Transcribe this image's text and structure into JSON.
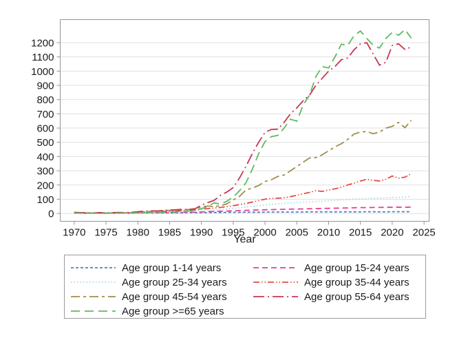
{
  "figure": {
    "background": "#ffffff"
  },
  "chart_data": {
    "type": "line",
    "title": "",
    "xlabel": "Year",
    "ylabel": "",
    "xlim": [
      1967.8,
      2025.8
    ],
    "ylim": [
      -55,
      1362
    ],
    "xticks": [
      1970,
      1975,
      1980,
      1985,
      1990,
      1995,
      2000,
      2005,
      2010,
      2015,
      2020,
      2025
    ],
    "yticks": [
      0,
      100,
      200,
      300,
      400,
      500,
      600,
      700,
      800,
      900,
      1000,
      1100,
      1200
    ],
    "grid": "horizontal",
    "legend_position": "bottom",
    "legend_columns": 2,
    "styles": {
      "grid_color": "#e0e0e0",
      "axis_color": "#949494",
      "legend_border_color": "#9a9a9a",
      "text_color": "#1a1a1a",
      "line_width": 1.8
    },
    "x": [
      1970,
      1971,
      1972,
      1973,
      1974,
      1975,
      1976,
      1977,
      1978,
      1979,
      1980,
      1981,
      1982,
      1983,
      1984,
      1985,
      1986,
      1987,
      1988,
      1989,
      1990,
      1991,
      1992,
      1993,
      1994,
      1995,
      1996,
      1997,
      1998,
      1999,
      2000,
      2001,
      2002,
      2003,
      2004,
      2005,
      2006,
      2007,
      2008,
      2009,
      2010,
      2011,
      2012,
      2013,
      2014,
      2015,
      2016,
      2017,
      2018,
      2019,
      2020,
      2021,
      2022,
      2023
    ],
    "series": [
      {
        "name": "Age group 1-14 years",
        "color": "#4d7ec0",
        "dash": "4 3",
        "values": [
          2,
          2,
          1,
          2,
          2,
          1,
          2,
          2,
          2,
          2,
          3,
          3,
          3,
          3,
          4,
          4,
          4,
          5,
          5,
          5,
          6,
          6,
          7,
          7,
          8,
          8,
          8,
          9,
          9,
          9,
          9,
          10,
          10,
          10,
          10,
          10,
          10,
          11,
          11,
          11,
          11,
          11,
          11,
          11,
          11,
          11,
          12,
          12,
          11,
          11,
          12,
          12,
          12,
          12
        ]
      },
      {
        "name": "Age group 15-24 years",
        "color": "#ea3a97",
        "dash": "8 5",
        "values": [
          4,
          3,
          3,
          2,
          3,
          2,
          3,
          3,
          3,
          4,
          5,
          5,
          6,
          6,
          7,
          7,
          8,
          8,
          9,
          10,
          11,
          13,
          14,
          15,
          17,
          18,
          20,
          22,
          24,
          25,
          26,
          27,
          28,
          29,
          30,
          31,
          32,
          33,
          34,
          35,
          36,
          37,
          38,
          39,
          40,
          41,
          41,
          42,
          42,
          43,
          43,
          44,
          43,
          45
        ]
      },
      {
        "name": "Age group 25-34 years",
        "color": "#a5d8e6",
        "dash": "1.5 3",
        "values": [
          3,
          2,
          2,
          2,
          2,
          2,
          3,
          3,
          3,
          3,
          4,
          5,
          6,
          7,
          8,
          9,
          10,
          11,
          13,
          14,
          16,
          19,
          22,
          26,
          30,
          35,
          40,
          45,
          50,
          55,
          60,
          64,
          68,
          71,
          74,
          77,
          80,
          82,
          85,
          87,
          90,
          92,
          95,
          97,
          100,
          102,
          104,
          106,
          108,
          110,
          112,
          113,
          115,
          120
        ]
      },
      {
        "name": "Age group 35-44 years",
        "color": "#e34b42",
        "dash": "9 3 1.5 3 1.5 3",
        "values": [
          3,
          3,
          2,
          2,
          3,
          2,
          3,
          3,
          4,
          4,
          6,
          8,
          10,
          12,
          14,
          15,
          17,
          20,
          22,
          25,
          30,
          34,
          38,
          42,
          48,
          55,
          62,
          70,
          80,
          90,
          100,
          105,
          107,
          110,
          118,
          128,
          138,
          148,
          160,
          155,
          165,
          173,
          185,
          200,
          213,
          228,
          240,
          233,
          228,
          240,
          263,
          248,
          255,
          280
        ]
      },
      {
        "name": "Age group 45-54 years",
        "color": "#a08c4e",
        "dash": "13 5 4 5",
        "values": [
          5,
          4,
          4,
          3,
          4,
          3,
          4,
          5,
          5,
          6,
          8,
          12,
          15,
          18,
          20,
          22,
          24,
          26,
          28,
          32,
          46,
          52,
          48,
          55,
          68,
          95,
          120,
          165,
          178,
          196,
          225,
          237,
          260,
          270,
          300,
          330,
          360,
          390,
          392,
          412,
          440,
          468,
          490,
          520,
          558,
          572,
          576,
          560,
          572,
          600,
          612,
          640,
          602,
          655
        ]
      },
      {
        "name": "Age group 55-64 years",
        "color": "#ca3350",
        "dash": "16 5 2 5",
        "values": [
          8,
          6,
          5,
          4,
          6,
          4,
          6,
          7,
          6,
          8,
          12,
          16,
          19,
          17,
          21,
          24,
          26,
          29,
          27,
          33,
          58,
          76,
          92,
          128,
          150,
          182,
          250,
          330,
          420,
          500,
          570,
          590,
          592,
          640,
          700,
          742,
          792,
          832,
          900,
          950,
          1000,
          1032,
          1080,
          1092,
          1150,
          1192,
          1200,
          1120,
          1042,
          1062,
          1180,
          1192,
          1152,
          1170
        ]
      },
      {
        "name": "Age group >=65 years",
        "color": "#5eba5e",
        "dash": "13 7",
        "values": [
          3,
          2,
          3,
          2,
          2,
          2,
          3,
          3,
          3,
          4,
          5,
          6,
          8,
          8,
          9,
          10,
          12,
          14,
          17,
          21,
          34,
          48,
          75,
          65,
          86,
          115,
          160,
          215,
          310,
          420,
          505,
          540,
          548,
          600,
          662,
          648,
          762,
          832,
          962,
          1032,
          1022,
          1100,
          1190,
          1180,
          1250,
          1282,
          1230,
          1182,
          1162,
          1230,
          1272,
          1252,
          1292,
          1232
        ]
      }
    ]
  }
}
